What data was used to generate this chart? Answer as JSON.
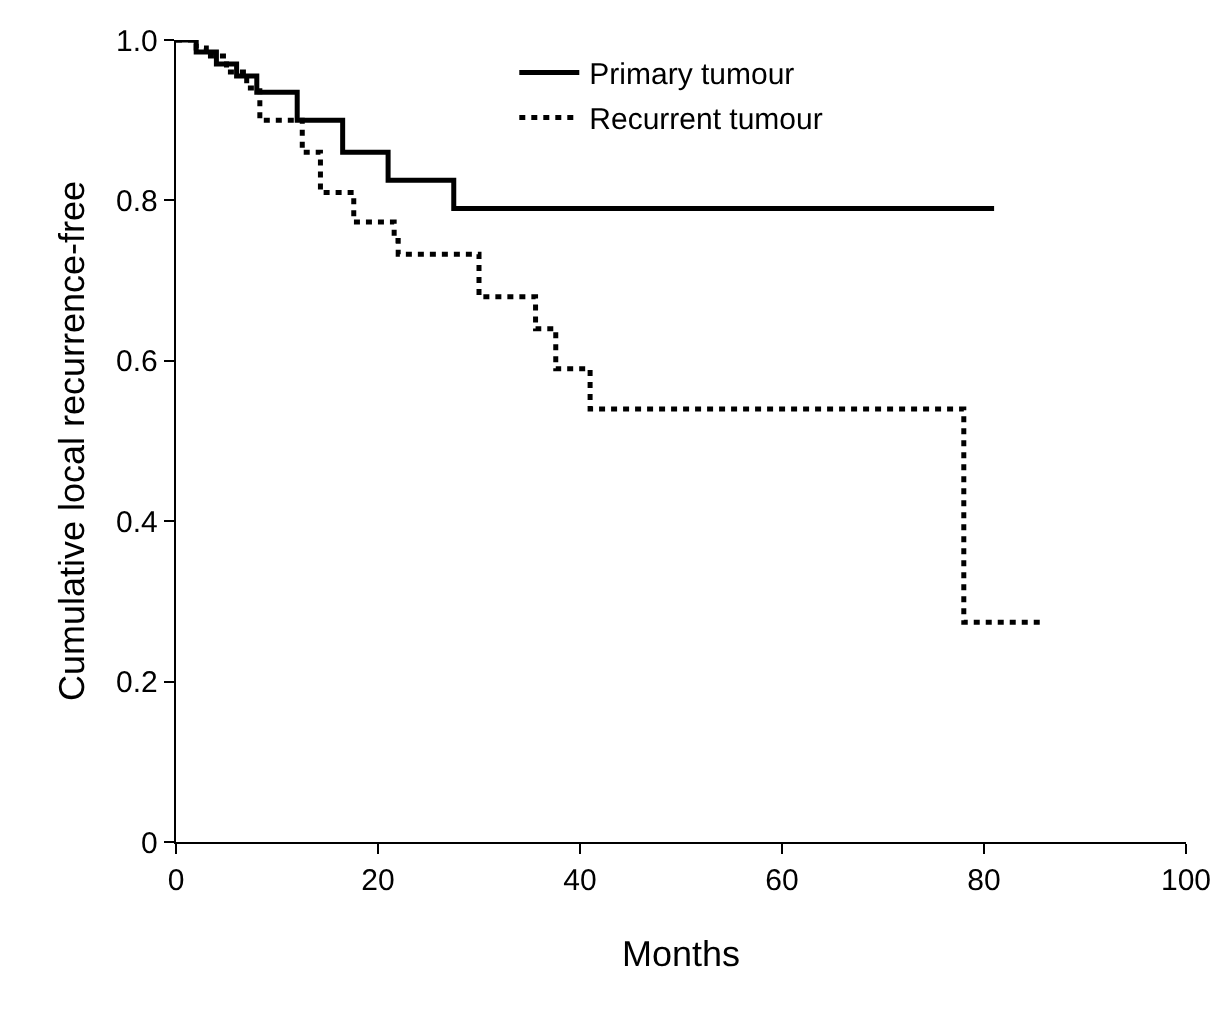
{
  "chart_data": {
    "type": "step",
    "xlabel": "Months",
    "ylabel": "Cumulative local recurrence-free",
    "series": [
      {
        "name": "Primary tumour",
        "color": "#000000",
        "line_style": "solid",
        "x": [
          0,
          2,
          4,
          6,
          8,
          12,
          16.5,
          21,
          27.5,
          81
        ],
        "values": [
          1,
          0.985,
          0.97,
          0.955,
          0.935,
          0.9,
          0.86,
          0.825,
          0.79,
          0.79
        ]
      },
      {
        "name": "Recurrent tumour",
        "color": "#000000",
        "line_style": "dotted",
        "x": [
          0,
          2,
          3,
          5,
          7,
          8.3,
          12.5,
          14.3,
          17.6,
          21.6,
          22,
          30,
          35.6,
          37.6,
          41,
          78,
          86
        ],
        "values": [
          1,
          0.99,
          0.98,
          0.96,
          0.94,
          0.9,
          0.86,
          0.81,
          0.773,
          0.75,
          0.733,
          0.68,
          0.64,
          0.59,
          0.54,
          0.274,
          0.274
        ]
      }
    ],
    "xlim": [
      0,
      100
    ],
    "xticks": [
      0,
      20,
      40,
      60,
      80,
      100
    ],
    "ylim": [
      0,
      1
    ],
    "yticks": [
      0,
      {
        "value": 0.2,
        "label": "0.2"
      },
      {
        "value": 0.4,
        "label": "0.4"
      },
      {
        "value": 0.6,
        "label": "0.6"
      },
      {
        "value": 0.8,
        "label": "0.8"
      },
      {
        "value": 1,
        "label": "1.0"
      }
    ],
    "grid": false,
    "legend": "top right",
    "marker": "none"
  }
}
